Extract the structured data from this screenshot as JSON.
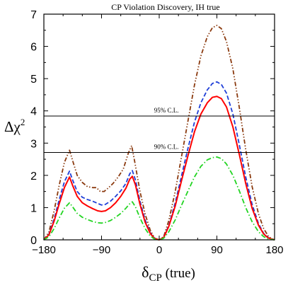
{
  "chart_data": {
    "type": "line",
    "title": "CP Violation Discovery, IH true",
    "xlabel_main": "δ",
    "xlabel_sub": "CP",
    "xlabel_suffix": " (true)",
    "ylabel_main": "Δχ",
    "ylabel_sup": "2",
    "xlim": [
      -180,
      180
    ],
    "ylim": [
      0,
      7
    ],
    "x_ticks": [
      -180,
      -90,
      0,
      90,
      180
    ],
    "x_tick_labels": [
      "−180",
      "−90",
      "0",
      "90",
      "180"
    ],
    "y_ticks": [
      0,
      1,
      2,
      3,
      4,
      5,
      6,
      7
    ],
    "y_tick_labels": [
      "0",
      "1",
      "2",
      "3",
      "4",
      "5",
      "6",
      "7"
    ],
    "grid": false,
    "reference_lines": [
      {
        "value": 3.84,
        "label": "95% C.L."
      },
      {
        "value": 2.71,
        "label": "90% C.L."
      }
    ],
    "series": [
      {
        "style": "dash-dot-dot",
        "color": "#8b3a0f",
        "points": [
          [
            -180,
            0
          ],
          [
            -172,
            0.25
          ],
          [
            -164,
            0.9
          ],
          [
            -156,
            1.7
          ],
          [
            -148,
            2.4
          ],
          [
            -140,
            2.78
          ],
          [
            -135,
            2.45
          ],
          [
            -128,
            2.0
          ],
          [
            -120,
            1.78
          ],
          [
            -112,
            1.65
          ],
          [
            -104,
            1.62
          ],
          [
            -98,
            1.62
          ],
          [
            -92,
            1.5
          ],
          [
            -86,
            1.5
          ],
          [
            -80,
            1.6
          ],
          [
            -72,
            1.75
          ],
          [
            -64,
            1.95
          ],
          [
            -56,
            2.2
          ],
          [
            -48,
            2.7
          ],
          [
            -43,
            2.92
          ],
          [
            -38,
            2.4
          ],
          [
            -30,
            1.5
          ],
          [
            -22,
            0.8
          ],
          [
            -14,
            0.3
          ],
          [
            -7,
            0.05
          ],
          [
            0,
            0
          ],
          [
            7,
            0.1
          ],
          [
            15,
            0.6
          ],
          [
            25,
            1.5
          ],
          [
            35,
            2.6
          ],
          [
            45,
            3.7
          ],
          [
            55,
            4.8
          ],
          [
            65,
            5.7
          ],
          [
            75,
            6.3
          ],
          [
            83,
            6.58
          ],
          [
            90,
            6.65
          ],
          [
            97,
            6.55
          ],
          [
            105,
            6.15
          ],
          [
            115,
            5.3
          ],
          [
            125,
            4.1
          ],
          [
            135,
            2.8
          ],
          [
            145,
            1.65
          ],
          [
            155,
            0.8
          ],
          [
            163,
            0.35
          ],
          [
            170,
            0.12
          ],
          [
            175,
            0.04
          ],
          [
            180,
            0
          ]
        ]
      },
      {
        "style": "dashed",
        "color": "#1f3fd8",
        "points": [
          [
            -180,
            0
          ],
          [
            -172,
            0.18
          ],
          [
            -164,
            0.65
          ],
          [
            -156,
            1.25
          ],
          [
            -148,
            1.8
          ],
          [
            -140,
            2.13
          ],
          [
            -135,
            1.85
          ],
          [
            -128,
            1.5
          ],
          [
            -120,
            1.32
          ],
          [
            -112,
            1.25
          ],
          [
            -104,
            1.2
          ],
          [
            -96,
            1.13
          ],
          [
            -90,
            1.08
          ],
          [
            -84,
            1.1
          ],
          [
            -76,
            1.2
          ],
          [
            -68,
            1.35
          ],
          [
            -60,
            1.52
          ],
          [
            -52,
            1.75
          ],
          [
            -46,
            2.05
          ],
          [
            -42,
            2.15
          ],
          [
            -37,
            1.85
          ],
          [
            -30,
            1.2
          ],
          [
            -22,
            0.62
          ],
          [
            -14,
            0.22
          ],
          [
            -7,
            0.04
          ],
          [
            0,
            0
          ],
          [
            7,
            0.08
          ],
          [
            15,
            0.45
          ],
          [
            25,
            1.15
          ],
          [
            35,
            2.0
          ],
          [
            45,
            2.85
          ],
          [
            55,
            3.65
          ],
          [
            65,
            4.25
          ],
          [
            75,
            4.65
          ],
          [
            83,
            4.85
          ],
          [
            90,
            4.9
          ],
          [
            97,
            4.82
          ],
          [
            105,
            4.55
          ],
          [
            115,
            3.9
          ],
          [
            125,
            2.95
          ],
          [
            135,
            1.95
          ],
          [
            145,
            1.1
          ],
          [
            155,
            0.5
          ],
          [
            163,
            0.2
          ],
          [
            170,
            0.07
          ],
          [
            180,
            0
          ]
        ]
      },
      {
        "style": "solid",
        "color": "#ff0000",
        "points": [
          [
            -180,
            0
          ],
          [
            -172,
            0.16
          ],
          [
            -164,
            0.58
          ],
          [
            -156,
            1.12
          ],
          [
            -148,
            1.62
          ],
          [
            -140,
            1.95
          ],
          [
            -135,
            1.68
          ],
          [
            -128,
            1.35
          ],
          [
            -120,
            1.15
          ],
          [
            -112,
            1.05
          ],
          [
            -104,
            0.97
          ],
          [
            -96,
            0.9
          ],
          [
            -90,
            0.88
          ],
          [
            -84,
            0.9
          ],
          [
            -76,
            1.0
          ],
          [
            -68,
            1.15
          ],
          [
            -60,
            1.35
          ],
          [
            -52,
            1.6
          ],
          [
            -46,
            1.88
          ],
          [
            -42,
            1.97
          ],
          [
            -37,
            1.7
          ],
          [
            -30,
            1.1
          ],
          [
            -22,
            0.55
          ],
          [
            -14,
            0.2
          ],
          [
            -7,
            0.03
          ],
          [
            0,
            0
          ],
          [
            7,
            0.07
          ],
          [
            15,
            0.42
          ],
          [
            25,
            1.05
          ],
          [
            35,
            1.85
          ],
          [
            45,
            2.62
          ],
          [
            55,
            3.35
          ],
          [
            65,
            3.9
          ],
          [
            75,
            4.25
          ],
          [
            83,
            4.42
          ],
          [
            90,
            4.45
          ],
          [
            97,
            4.38
          ],
          [
            105,
            4.12
          ],
          [
            115,
            3.5
          ],
          [
            125,
            2.65
          ],
          [
            135,
            1.75
          ],
          [
            145,
            0.98
          ],
          [
            155,
            0.45
          ],
          [
            163,
            0.18
          ],
          [
            170,
            0.06
          ],
          [
            180,
            0
          ]
        ]
      },
      {
        "style": "dash-dot",
        "color": "#22d422",
        "points": [
          [
            -180,
            0
          ],
          [
            -172,
            0.1
          ],
          [
            -164,
            0.35
          ],
          [
            -156,
            0.68
          ],
          [
            -148,
            0.98
          ],
          [
            -140,
            1.15
          ],
          [
            -135,
            1.02
          ],
          [
            -128,
            0.82
          ],
          [
            -120,
            0.7
          ],
          [
            -112,
            0.63
          ],
          [
            -104,
            0.57
          ],
          [
            -96,
            0.53
          ],
          [
            -90,
            0.52
          ],
          [
            -84,
            0.54
          ],
          [
            -76,
            0.6
          ],
          [
            -68,
            0.7
          ],
          [
            -60,
            0.82
          ],
          [
            -52,
            0.98
          ],
          [
            -46,
            1.12
          ],
          [
            -42,
            1.18
          ],
          [
            -37,
            1.02
          ],
          [
            -30,
            0.68
          ],
          [
            -22,
            0.35
          ],
          [
            -14,
            0.12
          ],
          [
            -7,
            0.02
          ],
          [
            0,
            0
          ],
          [
            7,
            0.05
          ],
          [
            15,
            0.25
          ],
          [
            25,
            0.62
          ],
          [
            35,
            1.08
          ],
          [
            45,
            1.52
          ],
          [
            55,
            1.95
          ],
          [
            65,
            2.28
          ],
          [
            75,
            2.48
          ],
          [
            83,
            2.55
          ],
          [
            90,
            2.57
          ],
          [
            97,
            2.52
          ],
          [
            105,
            2.35
          ],
          [
            115,
            2.0
          ],
          [
            125,
            1.52
          ],
          [
            135,
            1.0
          ],
          [
            145,
            0.56
          ],
          [
            155,
            0.25
          ],
          [
            163,
            0.1
          ],
          [
            170,
            0.03
          ],
          [
            180,
            0
          ]
        ]
      }
    ]
  }
}
